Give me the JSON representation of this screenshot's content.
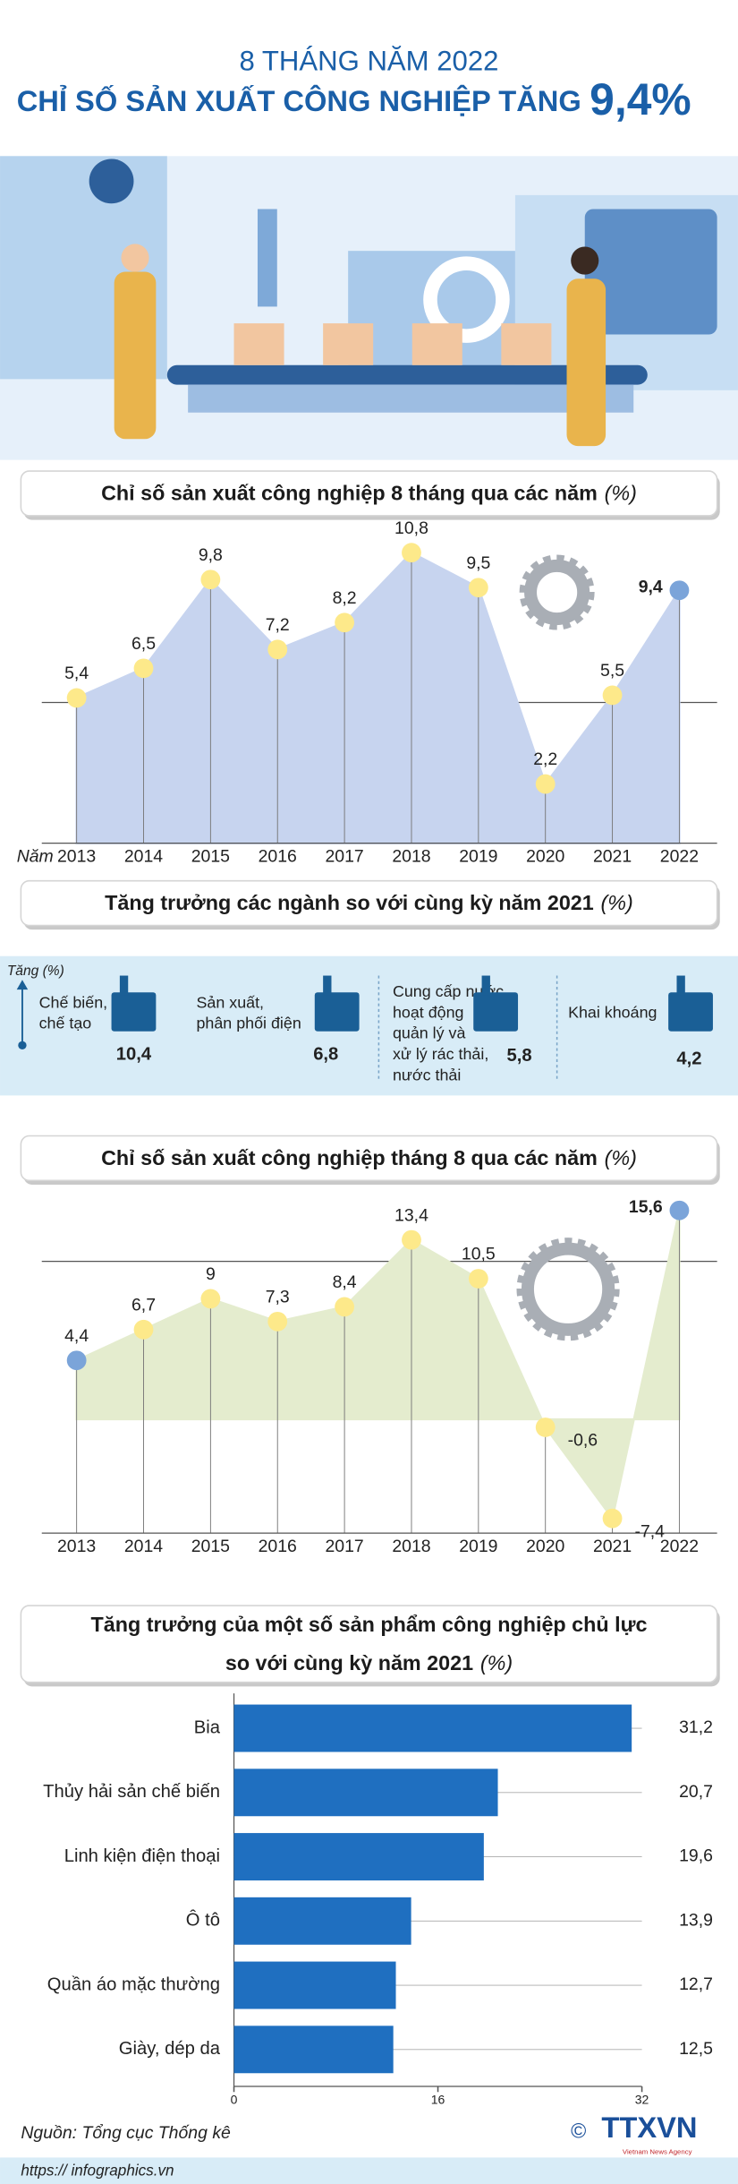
{
  "header": {
    "kicker": "8 THÁNG NĂM 2022",
    "title": "CHỈ SỐ SẢN XUẤT CÔNG NGHIỆP TĂNG",
    "highlight": "9,4%"
  },
  "chart_data": [
    {
      "type": "line",
      "title": [
        "Chỉ số sản xuất công nghiệp 8 tháng qua các năm"
      ],
      "unit": "(%)",
      "x_label": "Năm",
      "categories": [
        "2013",
        "2014",
        "2015",
        "2016",
        "2017",
        "2018",
        "2019",
        "2020",
        "2021",
        "2022"
      ],
      "values": [
        5.4,
        6.5,
        9.8,
        7.2,
        8.2,
        10.8,
        9.5,
        2.2,
        5.5,
        9.4
      ],
      "value_labels": [
        "5,4",
        "6,5",
        "9,8",
        "7,2",
        "8,2",
        "10,8",
        "9,5",
        "2,2",
        "5,5",
        "9,4"
      ],
      "color": "#c7d4ef",
      "marker_colors": [
        "#fde98a",
        "#fde98a",
        "#fde98a",
        "#fde98a",
        "#fde98a",
        "#fde98a",
        "#fde98a",
        "#fde98a",
        "#fde98a",
        "#7ba4d9"
      ],
      "ylim": [
        0,
        11.5
      ]
    },
    {
      "type": "line",
      "title": [
        "Chỉ số sản xuất công nghiệp tháng 8 qua các năm"
      ],
      "unit": "(%)",
      "categories": [
        "2013",
        "2014",
        "2015",
        "2016",
        "2017",
        "2018",
        "2019",
        "2020",
        "2021",
        "2022"
      ],
      "values": [
        4.4,
        6.7,
        9,
        7.3,
        8.4,
        13.4,
        10.5,
        -0.6,
        -7.4,
        15.6
      ],
      "value_labels": [
        "4,4",
        "6,7",
        "9",
        "7,3",
        "8,4",
        "13,4",
        "10,5",
        "-0,6",
        "-7,4",
        "15,6"
      ],
      "color": "#e4ecce",
      "marker_colors": [
        "#7ba4d9",
        "#fde98a",
        "#fde98a",
        "#fde98a",
        "#fde98a",
        "#fde98a",
        "#fde98a",
        "#fde98a",
        "#fde98a",
        "#7ba4d9"
      ],
      "ylim": [
        -8.5,
        17
      ]
    },
    {
      "type": "hbar",
      "title": [
        "Tăng trưởng của một số sản phẩm công nghiệp chủ lực",
        "so với cùng kỳ năm 2021"
      ],
      "unit": "(%)",
      "categories": [
        "Bia",
        "Thủy hải sản chế biến",
        "Linh kiện điện thoại",
        "Ô tô",
        "Quần áo mặc thường",
        "Giày, dép da"
      ],
      "values": [
        31.2,
        20.7,
        19.6,
        13.9,
        12.7,
        12.5
      ],
      "value_labels": [
        "31,2",
        "20,7",
        "19,6",
        "13,9",
        "12,7",
        "12,5"
      ],
      "color": "#1f6fc0",
      "xlim": [
        0,
        32
      ],
      "xticks": [
        0,
        16,
        32
      ]
    }
  ],
  "sectors": {
    "title": "Tăng trưởng các ngành so với cùng kỳ năm 2021",
    "unit": "(%)",
    "axis_label": "Tăng (%)",
    "items": [
      {
        "label_lines": [
          "Chế biến,",
          "chế tạo"
        ],
        "value": "10,4"
      },
      {
        "label_lines": [
          "Sản xuất,",
          "phân phối điện"
        ],
        "value": "6,8"
      },
      {
        "label_lines": [
          "Cung cấp nước,",
          "hoạt động",
          "quản lý và",
          "xử lý rác thải,",
          "nước thải"
        ],
        "value": "5,8"
      },
      {
        "label_lines": [
          "Khai khoáng"
        ],
        "value": "4,2"
      }
    ]
  },
  "footer": {
    "source": "Nguồn: Tổng cục Thống kê",
    "copyright": "©",
    "logo": "TTXVN",
    "agency": "Vietnam News Agency",
    "url": "https:// infographics.vn"
  }
}
